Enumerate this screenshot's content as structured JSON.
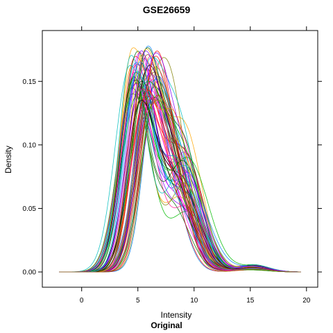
{
  "chart_data": {
    "type": "line",
    "title": "GSE26659",
    "subtitle": "Original",
    "xlabel": "Intensity",
    "ylabel": "Density",
    "xlim": [
      -3.5,
      21
    ],
    "ylim": [
      -0.012,
      0.19
    ],
    "xticks": [
      0,
      5,
      10,
      15,
      20
    ],
    "yticks": [
      0.0,
      0.05,
      0.1,
      0.15
    ],
    "xtick_labels": [
      "0",
      "5",
      "10",
      "15",
      "20"
    ],
    "ytick_labels": [
      "0.00",
      "0.05",
      "0.10",
      "0.15"
    ],
    "grid": false,
    "legend": "none",
    "palette": [
      "#0080ff",
      "#ff00ff",
      "#006400",
      "#ff0000",
      "#ffa500",
      "#00bb00",
      "#8b4513",
      "#000000",
      "#8000ff",
      "#00bfbf",
      "#ff1493",
      "#808000"
    ],
    "series_count": 72,
    "profile": {
      "description_units": "Intensity / Density",
      "min_intensity": -2,
      "max_intensity": 19.5,
      "main_peak_intensity": [
        4.2,
        6.8
      ],
      "main_peak_density": [
        0.135,
        0.178
      ],
      "shoulder_intensity": [
        8.0,
        9.5
      ],
      "shoulder_density": [
        0.08,
        0.125
      ],
      "density_at_15": 0.003
    }
  }
}
